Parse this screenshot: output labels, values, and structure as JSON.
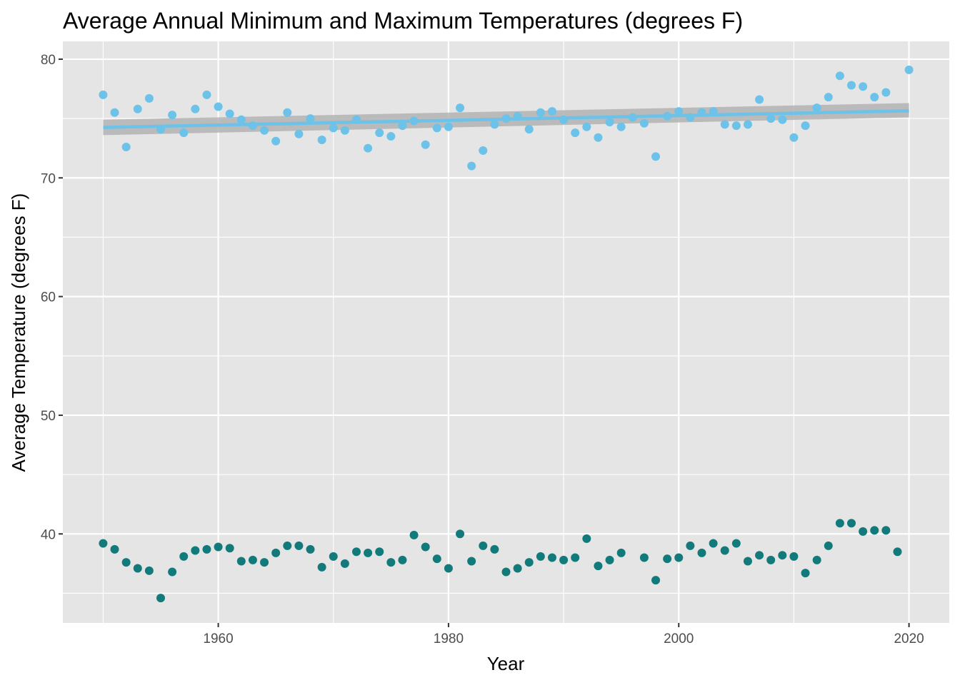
{
  "chart_data": {
    "type": "scatter",
    "title": "Average Annual Minimum and Maximum Temperatures (degrees F)",
    "xlabel": "Year",
    "ylabel": "Average Temperature (degrees F)",
    "xlim": [
      1946.5,
      2023.5
    ],
    "ylim": [
      32.5,
      81.5
    ],
    "x_ticks": [
      1960,
      1980,
      2000,
      2020
    ],
    "x_tick_labels": [
      "1960",
      "1980",
      "2000",
      "2020"
    ],
    "y_ticks": [
      40,
      50,
      60,
      70,
      80
    ],
    "y_tick_labels": [
      "40",
      "50",
      "60",
      "70",
      "80"
    ],
    "grid": true,
    "legend": "none",
    "colors": {
      "panel_bg": "#e5e5e5",
      "grid": "#ffffff",
      "max_points": "#6cc2e8",
      "min_points": "#127a7a",
      "trend_line": "#6cc2e8",
      "confidence_band": "#b3b3b3"
    },
    "series": [
      {
        "role": "max",
        "x": [
          1950,
          1951,
          1952,
          1953,
          1954,
          1955,
          1956,
          1957,
          1958,
          1959,
          1960,
          1961,
          1962,
          1963,
          1964,
          1965,
          1966,
          1967,
          1968,
          1969,
          1970,
          1971,
          1972,
          1973,
          1974,
          1975,
          1976,
          1977,
          1978,
          1979,
          1980,
          1981,
          1982,
          1983,
          1984,
          1985,
          1986,
          1987,
          1988,
          1989,
          1990,
          1991,
          1992,
          1993,
          1994,
          1995,
          1996,
          1997,
          1998,
          1999,
          2000,
          2001,
          2002,
          2003,
          2004,
          2005,
          2006,
          2007,
          2008,
          2009,
          2010,
          2011,
          2012,
          2013,
          2014,
          2015,
          2016,
          2017,
          2018,
          2020
        ],
        "values": [
          77.0,
          75.5,
          72.6,
          75.8,
          76.7,
          74.1,
          75.3,
          73.8,
          75.8,
          77.0,
          76.0,
          75.4,
          74.9,
          74.4,
          74.0,
          73.1,
          75.5,
          73.7,
          75.0,
          73.2,
          74.2,
          74.0,
          74.9,
          72.5,
          73.8,
          73.5,
          74.4,
          74.8,
          72.8,
          74.2,
          74.3,
          75.9,
          71.0,
          72.3,
          74.5,
          75.0,
          75.2,
          74.1,
          75.5,
          75.6,
          74.9,
          73.8,
          74.3,
          73.4,
          74.7,
          74.3,
          75.1,
          74.6,
          71.8,
          75.2,
          75.6,
          75.1,
          75.5,
          75.6,
          74.5,
          74.4,
          74.5,
          76.6,
          75.0,
          74.9,
          73.4,
          74.4,
          75.9,
          76.8,
          78.6,
          77.8,
          77.7,
          76.8,
          77.2,
          79.1
        ]
      },
      {
        "role": "min",
        "x": [
          1950,
          1951,
          1952,
          1953,
          1954,
          1955,
          1956,
          1957,
          1958,
          1959,
          1960,
          1961,
          1962,
          1963,
          1964,
          1965,
          1966,
          1967,
          1968,
          1969,
          1970,
          1971,
          1972,
          1973,
          1974,
          1975,
          1976,
          1977,
          1978,
          1979,
          1980,
          1981,
          1982,
          1983,
          1984,
          1985,
          1986,
          1987,
          1988,
          1989,
          1990,
          1991,
          1992,
          1993,
          1994,
          1995,
          1997,
          1998,
          1999,
          2000,
          2001,
          2002,
          2003,
          2004,
          2005,
          2006,
          2007,
          2008,
          2009,
          2010,
          2011,
          2012,
          2013,
          2014,
          2015,
          2016,
          2017,
          2018,
          2019
        ],
        "values": [
          39.2,
          38.7,
          37.6,
          37.1,
          36.9,
          34.6,
          36.8,
          38.1,
          38.6,
          38.7,
          38.9,
          38.8,
          37.7,
          37.8,
          37.6,
          38.4,
          39.0,
          39.0,
          38.7,
          37.2,
          38.1,
          37.5,
          38.5,
          38.4,
          38.5,
          37.6,
          37.8,
          39.9,
          38.9,
          37.9,
          37.1,
          40.0,
          37.7,
          39.0,
          38.7,
          36.8,
          37.1,
          37.6,
          38.1,
          38.0,
          37.8,
          38.0,
          39.6,
          37.3,
          37.8,
          38.4,
          38.0,
          36.1,
          37.9,
          38.0,
          39.0,
          38.4,
          39.2,
          38.6,
          39.2,
          37.7,
          38.2,
          37.8,
          38.2,
          38.1,
          36.7,
          37.8,
          39.0,
          40.9,
          40.9,
          40.2,
          40.3,
          40.3,
          38.5
        ]
      }
    ],
    "trend": {
      "series": "max",
      "x": [
        1950,
        2020
      ],
      "values": [
        74.25,
        75.65
      ],
      "ci_lower": [
        73.6,
        75.1
      ],
      "ci_upper": [
        74.9,
        76.3
      ]
    }
  }
}
